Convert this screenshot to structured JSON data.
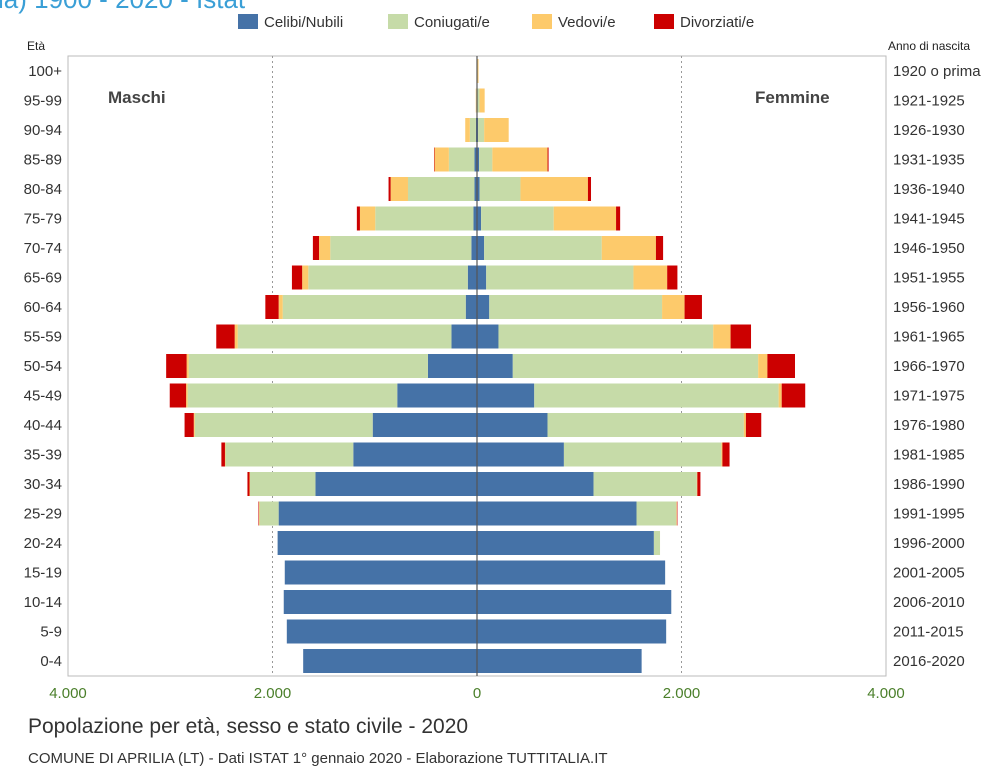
{
  "header_partial": "ia) 1900 - 2020 - Istat",
  "chart_data": {
    "type": "bar",
    "orientation": "horizontal-pyramid",
    "title": "Popolazione per età, sesso e stato civile - 2020",
    "source": "COMUNE DI APRILIA (LT) - Dati ISTAT 1° gennaio 2020 - Elaborazione TUTTITALIA.IT",
    "left_axis_title": "Età",
    "right_axis_title": "Anno di nascita",
    "male_label": "Maschi",
    "female_label": "Femmine",
    "x_range": [
      -4000,
      4000
    ],
    "x_ticks": [
      {
        "value": -4000,
        "label": "4.000"
      },
      {
        "value": -2000,
        "label": "2.000"
      },
      {
        "value": 0,
        "label": "0"
      },
      {
        "value": 2000,
        "label": "2.000"
      },
      {
        "value": 4000,
        "label": "4.000"
      }
    ],
    "grid": true,
    "legend_position": "top",
    "series": [
      {
        "name": "Celibi/Nubili",
        "color": "#4572a7"
      },
      {
        "name": "Coniugati/e",
        "color": "#c6dba8"
      },
      {
        "name": "Vedovi/e",
        "color": "#fdca6b"
      },
      {
        "name": "Divorziati/e",
        "color": "#cc0000"
      }
    ],
    "age_groups": [
      "100+",
      "95-99",
      "90-94",
      "85-89",
      "80-84",
      "75-79",
      "70-74",
      "65-69",
      "60-64",
      "55-59",
      "50-54",
      "45-49",
      "40-44",
      "35-39",
      "30-34",
      "25-29",
      "20-24",
      "15-19",
      "10-14",
      "5-9",
      "0-4"
    ],
    "birth_years": [
      "1920 o prima",
      "1921-1925",
      "1926-1930",
      "1931-1935",
      "1936-1940",
      "1941-1945",
      "1946-1950",
      "1951-1955",
      "1956-1960",
      "1961-1965",
      "1966-1970",
      "1971-1975",
      "1976-1980",
      "1981-1985",
      "1986-1990",
      "1991-1995",
      "1996-2000",
      "2001-2005",
      "2006-2010",
      "2011-2015",
      "2016-2020"
    ],
    "males": [
      [
        0,
        0,
        0,
        0
      ],
      [
        2,
        5,
        5,
        0
      ],
      [
        10,
        60,
        45,
        0
      ],
      [
        25,
        250,
        140,
        5
      ],
      [
        25,
        650,
        170,
        20
      ],
      [
        35,
        960,
        150,
        30
      ],
      [
        55,
        1380,
        110,
        60
      ],
      [
        90,
        1560,
        60,
        100
      ],
      [
        110,
        1790,
        40,
        130
      ],
      [
        250,
        2090,
        30,
        180
      ],
      [
        480,
        2340,
        20,
        200
      ],
      [
        780,
        2050,
        15,
        160
      ],
      [
        1020,
        1740,
        10,
        90
      ],
      [
        1210,
        1250,
        5,
        35
      ],
      [
        1580,
        640,
        5,
        20
      ],
      [
        1940,
        190,
        2,
        5
      ],
      [
        1950,
        0,
        0,
        0
      ],
      [
        1880,
        0,
        0,
        0
      ],
      [
        1890,
        0,
        0,
        0
      ],
      [
        1860,
        0,
        0,
        0
      ],
      [
        1700,
        0,
        0,
        0
      ]
    ],
    "females": [
      [
        0,
        5,
        10,
        0
      ],
      [
        5,
        20,
        50,
        0
      ],
      [
        10,
        60,
        240,
        0
      ],
      [
        20,
        130,
        540,
        10
      ],
      [
        25,
        400,
        660,
        30
      ],
      [
        40,
        710,
        610,
        40
      ],
      [
        70,
        1150,
        530,
        70
      ],
      [
        90,
        1440,
        330,
        100
      ],
      [
        120,
        1690,
        220,
        170
      ],
      [
        210,
        2100,
        170,
        200
      ],
      [
        350,
        2400,
        90,
        270
      ],
      [
        560,
        2390,
        30,
        230
      ],
      [
        690,
        1920,
        20,
        150
      ],
      [
        850,
        1540,
        10,
        70
      ],
      [
        1140,
        1010,
        5,
        30
      ],
      [
        1560,
        390,
        5,
        5
      ],
      [
        1730,
        60,
        0,
        0
      ],
      [
        1840,
        0,
        0,
        0
      ],
      [
        1900,
        0,
        0,
        0
      ],
      [
        1850,
        0,
        0,
        0
      ],
      [
        1610,
        0,
        0,
        0
      ]
    ]
  }
}
